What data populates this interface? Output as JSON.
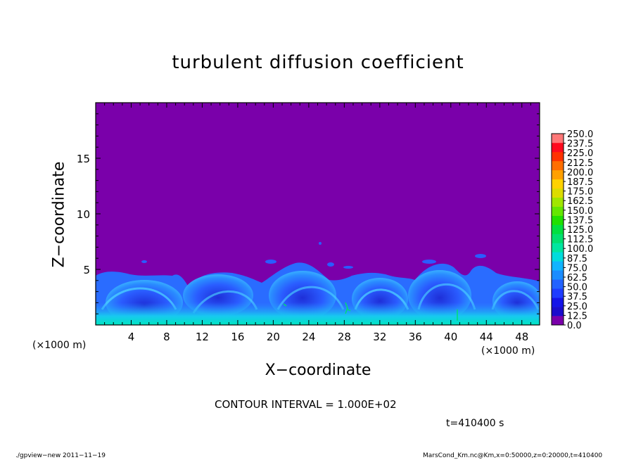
{
  "chart_data": {
    "type": "heatmap",
    "title": "turbulent diffusion coefficient",
    "xlabel": "X−coordinate",
    "ylabel": "Z−coordinate",
    "xlim": [
      0,
      50
    ],
    "ylim": [
      0,
      20
    ],
    "x_ticks": [
      "4",
      "8",
      "12",
      "16",
      "20",
      "24",
      "28",
      "32",
      "36",
      "40",
      "44",
      "48"
    ],
    "x_tick_values": [
      4,
      8,
      12,
      16,
      20,
      24,
      28,
      32,
      36,
      40,
      44,
      48
    ],
    "y_ticks": [
      "5",
      "10",
      "15"
    ],
    "y_tick_values": [
      5,
      10,
      15
    ],
    "x_unit_left": "(×1000 m)",
    "x_unit_right": "(×1000 m)",
    "background_value": 0.0,
    "turbulent_layer_top_approx": 4.5,
    "colorbar": {
      "labels": [
        "250.0",
        "237.5",
        "225.0",
        "212.5",
        "200.0",
        "187.5",
        "175.0",
        "162.5",
        "150.0",
        "137.5",
        "125.0",
        "112.5",
        "100.0",
        "87.5",
        "75.0",
        "62.5",
        "50.0",
        "37.5",
        "25.0",
        "12.5",
        "0.0"
      ],
      "colors_low_to_high": [
        "#7a00aa",
        "#1a0ccc",
        "#1414e8",
        "#1e3cff",
        "#2262ff",
        "#1a8cff",
        "#10b4ff",
        "#00dcdc",
        "#00e6a0",
        "#00e070",
        "#00e040",
        "#20e000",
        "#64e600",
        "#a0e600",
        "#dcdc00",
        "#ffd200",
        "#ffa000",
        "#ff6e00",
        "#ff3200",
        "#ff0a1e",
        "#ff7878"
      ]
    }
  },
  "contour_interval": "CONTOUR INTERVAL = 1.000E+02",
  "time_label": "t=410400 s",
  "footer_left": "./gpview−new   2011−11−19",
  "footer_right": "MarsCond_Km.nc@Km,x=0:50000,z=0:20000,t=410400",
  "colors": {
    "background_purple": "#7a00aa"
  }
}
